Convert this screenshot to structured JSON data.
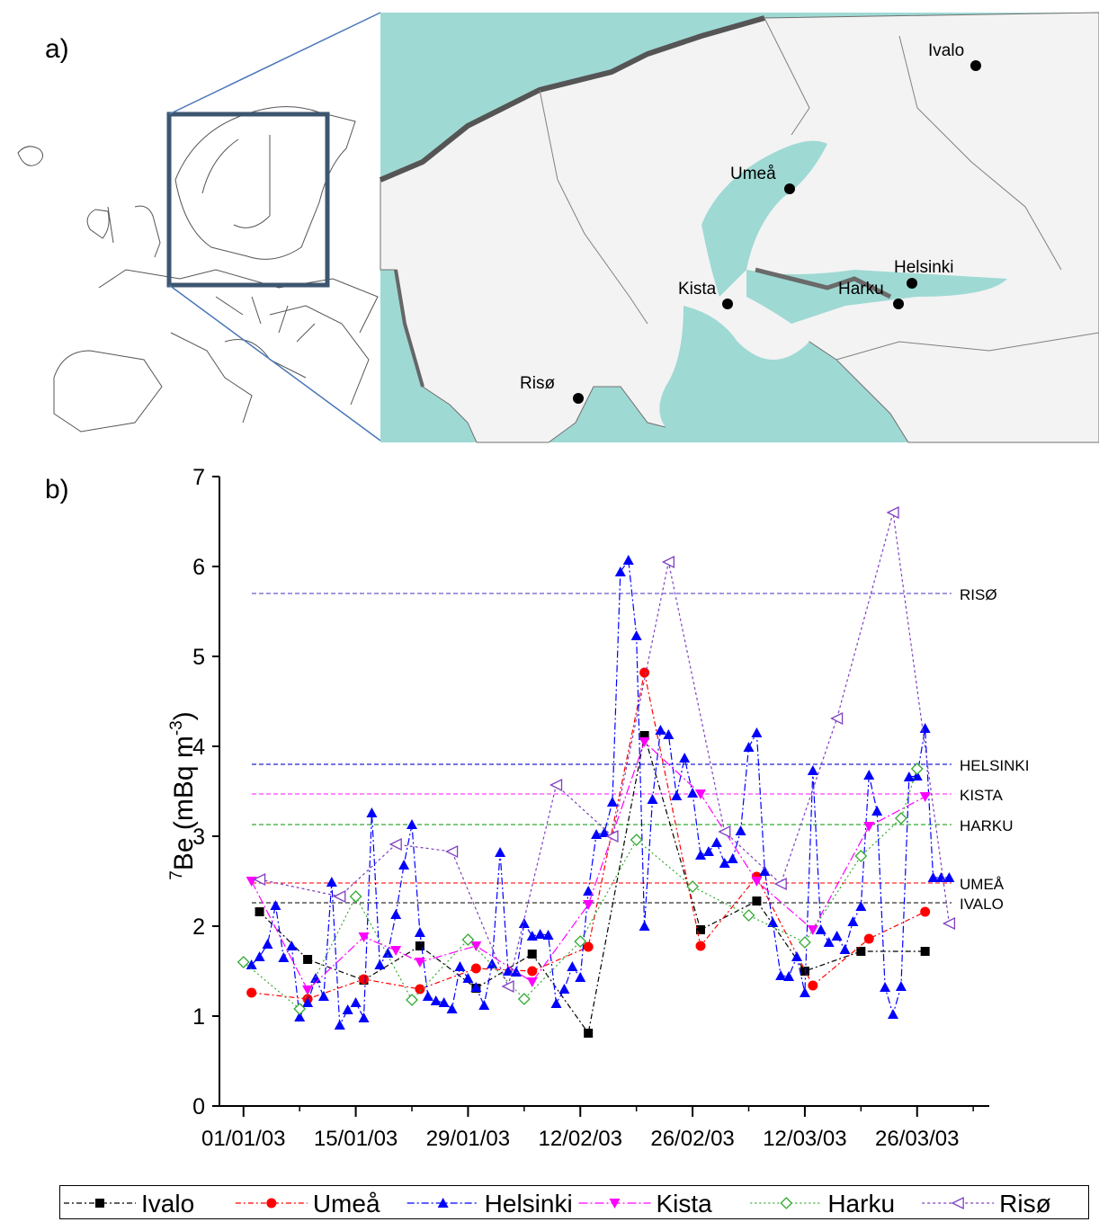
{
  "panels": {
    "a": "a)",
    "b": "b)"
  },
  "map": {
    "stations": [
      "Ivalo",
      "Umeå",
      "Helsinki",
      "Harku",
      "Kista",
      "Risø"
    ],
    "colors": {
      "sea": "#9fd9d4",
      "land": "#f4f4f4",
      "border": "#6f6f6f",
      "inset_box": "#3d5670",
      "connector": "#4a76b8"
    }
  },
  "chart_data": {
    "type": "line",
    "ylabel_sup": "7",
    "ylabel_main": "Be (mBq m",
    "ylabel_exp": "-3",
    "ylabel_close": ")",
    "ylim": [
      0,
      7
    ],
    "yticks": [
      0,
      1,
      2,
      3,
      4,
      5,
      6,
      7
    ],
    "xlim": [
      "2002-12-29",
      "2003-04-04"
    ],
    "xticks": [
      {
        "date": "2003-01-01",
        "label": "01/01/03"
      },
      {
        "date": "2003-01-15",
        "label": "15/01/03"
      },
      {
        "date": "2003-01-29",
        "label": "29/01/03"
      },
      {
        "date": "2003-02-12",
        "label": "12/02/03"
      },
      {
        "date": "2003-02-26",
        "label": "26/02/03"
      },
      {
        "date": "2003-03-12",
        "label": "12/03/03"
      },
      {
        "date": "2003-03-26",
        "label": "26/03/03"
      }
    ],
    "reference_lines": [
      {
        "label": "RISØ",
        "value": 5.7,
        "color": "#6a5acd"
      },
      {
        "label": "HELSINKI",
        "value": 3.8,
        "color": "#2020d0"
      },
      {
        "label": "KISTA",
        "value": 3.47,
        "color": "#ff40ff"
      },
      {
        "label": "HARKU",
        "value": 3.13,
        "color": "#33aa33"
      },
      {
        "label": "UMEÅ",
        "value": 2.48,
        "color": "#ff2a2a"
      },
      {
        "label": "IVALO",
        "value": 2.26,
        "color": "#333333"
      }
    ],
    "series": [
      {
        "name": "Ivalo",
        "color": "#000000",
        "marker": "square",
        "dash": "6,3,2,3",
        "x": [
          "2003-01-03",
          "2003-01-09",
          "2003-01-16",
          "2003-01-23",
          "2003-01-30",
          "2003-02-06",
          "2003-02-13",
          "2003-02-20",
          "2003-02-27",
          "2003-03-06",
          "2003-03-12",
          "2003-03-19",
          "2003-03-27"
        ],
        "y": [
          2.16,
          1.63,
          1.4,
          1.78,
          1.31,
          1.69,
          0.81,
          4.12,
          1.96,
          2.28,
          1.5,
          1.72,
          1.72
        ]
      },
      {
        "name": "Umeå",
        "color": "#ff0000",
        "marker": "circle",
        "dash": "6,3,2,3",
        "x": [
          "2003-01-02",
          "2003-01-09",
          "2003-01-16",
          "2003-01-23",
          "2003-01-30",
          "2003-02-06",
          "2003-02-13",
          "2003-02-20",
          "2003-02-27",
          "2003-03-06",
          "2003-03-13",
          "2003-03-20",
          "2003-03-27"
        ],
        "y": [
          1.26,
          1.19,
          1.41,
          1.3,
          1.53,
          1.5,
          1.77,
          4.82,
          1.78,
          2.55,
          1.34,
          1.86,
          2.16
        ]
      },
      {
        "name": "Helsinki",
        "color": "#0000ff",
        "marker": "triangle-up",
        "dash": "8,3,2,3",
        "x": [
          "2003-01-02",
          "2003-01-03",
          "2003-01-04",
          "2003-01-05",
          "2003-01-06",
          "2003-01-07",
          "2003-01-08",
          "2003-01-09",
          "2003-01-10",
          "2003-01-11",
          "2003-01-12",
          "2003-01-13",
          "2003-01-14",
          "2003-01-15",
          "2003-01-16",
          "2003-01-17",
          "2003-01-18",
          "2003-01-19",
          "2003-01-20",
          "2003-01-21",
          "2003-01-22",
          "2003-01-23",
          "2003-01-24",
          "2003-01-25",
          "2003-01-26",
          "2003-01-27",
          "2003-01-28",
          "2003-01-29",
          "2003-01-30",
          "2003-01-31",
          "2003-02-01",
          "2003-02-02",
          "2003-02-03",
          "2003-02-04",
          "2003-02-05",
          "2003-02-06",
          "2003-02-07",
          "2003-02-08",
          "2003-02-09",
          "2003-02-10",
          "2003-02-11",
          "2003-02-12",
          "2003-02-13",
          "2003-02-14",
          "2003-02-15",
          "2003-02-16",
          "2003-02-17",
          "2003-02-18",
          "2003-02-19",
          "2003-02-20",
          "2003-02-21",
          "2003-02-22",
          "2003-02-23",
          "2003-02-24",
          "2003-02-25",
          "2003-02-26",
          "2003-02-27",
          "2003-02-28",
          "2003-03-01",
          "2003-03-02",
          "2003-03-03",
          "2003-03-04",
          "2003-03-05",
          "2003-03-06",
          "2003-03-07",
          "2003-03-08",
          "2003-03-09",
          "2003-03-10",
          "2003-03-11",
          "2003-03-12",
          "2003-03-13",
          "2003-03-14",
          "2003-03-15",
          "2003-03-16",
          "2003-03-17",
          "2003-03-18",
          "2003-03-19",
          "2003-03-20",
          "2003-03-21",
          "2003-03-22",
          "2003-03-23",
          "2003-03-24",
          "2003-03-25",
          "2003-03-26",
          "2003-03-27",
          "2003-03-28",
          "2003-03-29",
          "2003-03-30"
        ],
        "y": [
          1.57,
          1.66,
          1.8,
          2.23,
          1.65,
          1.78,
          0.99,
          1.15,
          1.42,
          1.22,
          2.49,
          0.9,
          1.07,
          1.15,
          0.98,
          3.26,
          1.57,
          1.7,
          2.13,
          2.68,
          3.13,
          1.93,
          1.22,
          1.17,
          1.15,
          1.08,
          1.55,
          1.42,
          1.32,
          1.12,
          1.58,
          2.82,
          1.5,
          1.49,
          2.03,
          1.89,
          1.91,
          1.9,
          1.14,
          1.3,
          1.55,
          1.43,
          2.39,
          3.02,
          3.04,
          3.38,
          5.94,
          6.07,
          5.23,
          2.0,
          3.41,
          4.18,
          4.13,
          3.45,
          3.87,
          3.48,
          2.79,
          2.83,
          2.93,
          2.7,
          2.75,
          3.06,
          3.99,
          4.15,
          2.61,
          2.04,
          1.45,
          1.44,
          1.66,
          1.26,
          3.73,
          1.96,
          1.82,
          1.89,
          1.74,
          2.05,
          2.22,
          3.68,
          3.28,
          1.32,
          1.02,
          1.33,
          3.66,
          3.67,
          4.2,
          2.54,
          2.54,
          2.54
        ]
      },
      {
        "name": "Kista",
        "color": "#ff00ff",
        "marker": "triangle-down",
        "dash": "10,3,2,3",
        "x": [
          "2003-01-02",
          "2003-01-09",
          "2003-01-16",
          "2003-01-20",
          "2003-01-23",
          "2003-01-30",
          "2003-02-06",
          "2003-02-13",
          "2003-02-20",
          "2003-02-27",
          "2003-03-06",
          "2003-03-13",
          "2003-03-20",
          "2003-03-27"
        ],
        "y": [
          2.5,
          1.29,
          1.88,
          1.73,
          1.6,
          1.78,
          1.38,
          2.24,
          4.05,
          3.47,
          2.5,
          1.96,
          3.11,
          3.44
        ]
      },
      {
        "name": "Harku",
        "color": "#33aa33",
        "marker": "diamond-open",
        "dash": "2,3",
        "x": [
          "2003-01-01",
          "2003-01-08",
          "2003-01-15",
          "2003-01-22",
          "2003-01-29",
          "2003-02-05",
          "2003-02-12",
          "2003-02-19",
          "2003-02-26",
          "2003-03-05",
          "2003-03-12",
          "2003-03-19",
          "2003-03-24",
          "2003-03-26"
        ],
        "y": [
          1.6,
          1.08,
          2.33,
          1.18,
          1.85,
          1.19,
          1.83,
          2.96,
          2.44,
          2.12,
          1.82,
          2.78,
          3.2,
          3.75
        ]
      },
      {
        "name": "Risø",
        "color": "#7f3fbf",
        "marker": "triangle-left-open",
        "dash": "3,3",
        "x": [
          "2003-01-03",
          "2003-01-13",
          "2003-01-20",
          "2003-01-27",
          "2003-02-03",
          "2003-02-09",
          "2003-02-16",
          "2003-02-23",
          "2003-03-02",
          "2003-03-09",
          "2003-03-16",
          "2003-03-23",
          "2003-03-30"
        ],
        "y": [
          2.52,
          2.33,
          2.91,
          2.83,
          1.33,
          3.57,
          3.0,
          6.05,
          3.05,
          2.47,
          4.31,
          6.6,
          2.03
        ]
      }
    ]
  }
}
